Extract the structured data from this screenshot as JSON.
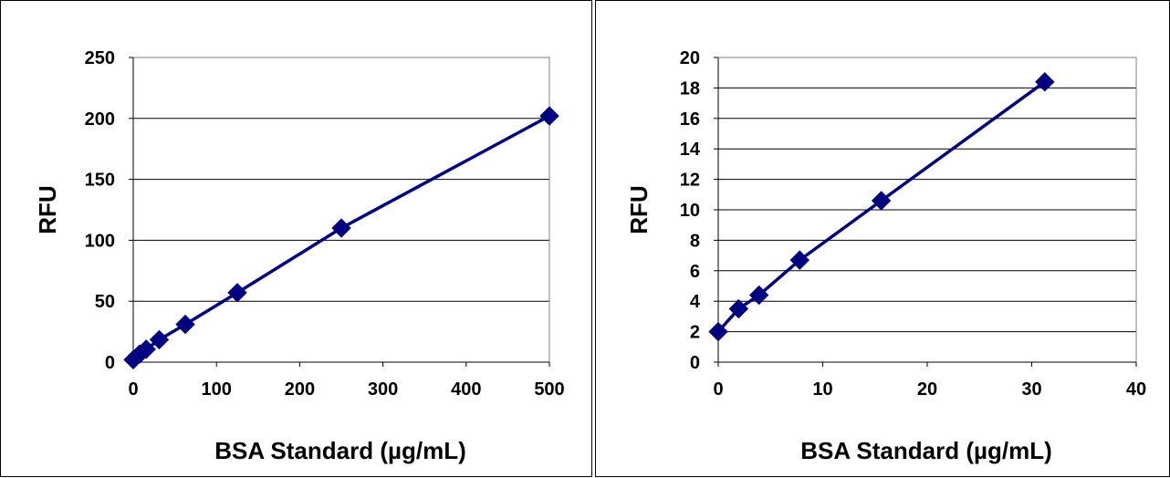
{
  "charts": [
    {
      "type": "scatter",
      "xlabel": "BSA Standard (µg/mL)",
      "ylabel": "RFU",
      "xlim": [
        0,
        500
      ],
      "ylim": [
        0,
        250
      ],
      "xticks": [
        0,
        100,
        200,
        300,
        400,
        500
      ],
      "yticks": [
        0,
        50,
        100,
        150,
        200,
        250
      ],
      "grid": "horizontal",
      "legend": "none",
      "series_color": "#000080",
      "points": [
        {
          "x": 0,
          "y": 2
        },
        {
          "x": 7.8,
          "y": 6.7
        },
        {
          "x": 15.6,
          "y": 10.6
        },
        {
          "x": 31.25,
          "y": 18.4
        },
        {
          "x": 62.5,
          "y": 31
        },
        {
          "x": 125,
          "y": 57
        },
        {
          "x": 250,
          "y": 110
        },
        {
          "x": 500,
          "y": 202
        }
      ]
    },
    {
      "type": "scatter",
      "xlabel": "BSA Standard (µg/mL)",
      "ylabel": "RFU",
      "xlim": [
        0,
        40
      ],
      "ylim": [
        0,
        20
      ],
      "xticks": [
        0,
        10,
        20,
        30,
        40
      ],
      "yticks": [
        0,
        2,
        4,
        6,
        8,
        10,
        12,
        14,
        16,
        18,
        20
      ],
      "grid": "horizontal",
      "legend": "none",
      "series_color": "#000080",
      "points": [
        {
          "x": 0,
          "y": 2
        },
        {
          "x": 1.95,
          "y": 3.5
        },
        {
          "x": 3.9,
          "y": 4.4
        },
        {
          "x": 7.8,
          "y": 6.7
        },
        {
          "x": 15.6,
          "y": 10.6
        },
        {
          "x": 31.25,
          "y": 18.4
        }
      ]
    }
  ]
}
